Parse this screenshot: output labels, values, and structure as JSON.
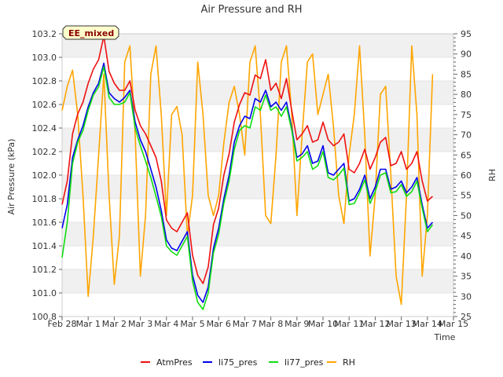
{
  "chart_data": {
    "type": "line",
    "title": "Air Pressure and RH",
    "xlabel": "Time",
    "ylabel": "Air Pressure (kPa)",
    "y2label": "RH",
    "badge": "EE_mixed",
    "x_ticks": [
      "Feb 28",
      "Mar 1",
      "Mar 2",
      "Mar 3",
      "Mar 4",
      "Mar 5",
      "Mar 6",
      "Mar 7",
      "Mar 8",
      "Mar 9",
      "Mar 10",
      "Mar 11",
      "Mar 12",
      "Mar 13",
      "Mar 14",
      "Mar 15"
    ],
    "xlim": [
      0,
      15
    ],
    "ylim": [
      100.8,
      103.2
    ],
    "y_ticks": [
      "100.8",
      "101.0",
      "101.2",
      "101.4",
      "101.6",
      "101.8",
      "102.0",
      "102.2",
      "102.4",
      "102.6",
      "102.8",
      "103.0",
      "103.2"
    ],
    "y2lim": [
      25,
      95
    ],
    "y2_ticks": [
      "25",
      "30",
      "35",
      "40",
      "45",
      "50",
      "55",
      "60",
      "65",
      "70",
      "75",
      "80",
      "85",
      "90",
      "95"
    ],
    "grid": "horizontal bands",
    "legend_position": "bottom",
    "series": [
      {
        "name": "AtmPres",
        "axis": "left",
        "color": "#ee1111",
        "x": [
          0.0,
          0.2,
          0.4,
          0.6,
          0.8,
          1.0,
          1.2,
          1.4,
          1.6,
          1.8,
          2.0,
          2.2,
          2.4,
          2.6,
          2.8,
          3.0,
          3.2,
          3.4,
          3.6,
          3.8,
          4.0,
          4.2,
          4.4,
          4.6,
          4.8,
          5.0,
          5.2,
          5.4,
          5.6,
          5.8,
          6.0,
          6.2,
          6.4,
          6.6,
          6.8,
          7.0,
          7.2,
          7.4,
          7.6,
          7.8,
          8.0,
          8.2,
          8.4,
          8.6,
          8.8,
          9.0,
          9.2,
          9.4,
          9.6,
          9.8,
          10.0,
          10.2,
          10.4,
          10.6,
          10.8,
          11.0,
          11.2,
          11.4,
          11.6,
          11.8,
          12.0,
          12.2,
          12.4,
          12.6,
          12.8,
          13.0,
          13.2,
          13.4,
          13.6,
          13.8,
          14.0,
          14.2
        ],
        "values": [
          101.75,
          101.95,
          102.35,
          102.52,
          102.62,
          102.78,
          102.9,
          102.98,
          103.18,
          102.88,
          102.78,
          102.72,
          102.72,
          102.8,
          102.55,
          102.42,
          102.35,
          102.25,
          102.15,
          101.95,
          101.62,
          101.55,
          101.52,
          101.6,
          101.68,
          101.32,
          101.15,
          101.08,
          101.22,
          101.58,
          101.72,
          102.0,
          102.18,
          102.45,
          102.6,
          102.7,
          102.68,
          102.85,
          102.82,
          102.98,
          102.72,
          102.78,
          102.65,
          102.82,
          102.55,
          102.3,
          102.35,
          102.42,
          102.28,
          102.3,
          102.45,
          102.3,
          102.25,
          102.28,
          102.35,
          102.05,
          102.02,
          102.1,
          102.22,
          102.05,
          102.15,
          102.28,
          102.32,
          102.08,
          102.1,
          102.2,
          102.05,
          102.1,
          102.2,
          101.95,
          101.78,
          101.82
        ]
      },
      {
        "name": "li75_pres",
        "axis": "left",
        "color": "#0000ee",
        "x": [
          0.0,
          0.2,
          0.4,
          0.6,
          0.8,
          1.0,
          1.2,
          1.4,
          1.6,
          1.8,
          2.0,
          2.2,
          2.4,
          2.6,
          2.8,
          3.0,
          3.2,
          3.4,
          3.6,
          3.8,
          4.0,
          4.2,
          4.4,
          4.6,
          4.8,
          5.0,
          5.2,
          5.4,
          5.6,
          5.8,
          6.0,
          6.2,
          6.4,
          6.6,
          6.8,
          7.0,
          7.2,
          7.4,
          7.6,
          7.8,
          8.0,
          8.2,
          8.4,
          8.6,
          8.8,
          9.0,
          9.2,
          9.4,
          9.6,
          9.8,
          10.0,
          10.2,
          10.4,
          10.6,
          10.8,
          11.0,
          11.2,
          11.4,
          11.6,
          11.8,
          12.0,
          12.2,
          12.4,
          12.6,
          12.8,
          13.0,
          13.2,
          13.4,
          13.6,
          13.8,
          14.0,
          14.2
        ],
        "values": [
          101.55,
          101.75,
          102.15,
          102.3,
          102.42,
          102.58,
          102.7,
          102.78,
          102.95,
          102.7,
          102.65,
          102.62,
          102.66,
          102.72,
          102.45,
          102.3,
          102.2,
          102.05,
          101.9,
          101.7,
          101.45,
          101.38,
          101.36,
          101.44,
          101.52,
          101.15,
          100.98,
          100.92,
          101.05,
          101.38,
          101.55,
          101.8,
          102.0,
          102.28,
          102.42,
          102.5,
          102.48,
          102.65,
          102.62,
          102.72,
          102.58,
          102.62,
          102.55,
          102.62,
          102.4,
          102.15,
          102.18,
          102.25,
          102.1,
          102.12,
          102.25,
          102.02,
          102.0,
          102.05,
          102.1,
          101.78,
          101.8,
          101.88,
          102.0,
          101.8,
          101.9,
          102.05,
          102.05,
          101.88,
          101.9,
          101.95,
          101.85,
          101.9,
          101.98,
          101.75,
          101.55,
          101.6
        ]
      },
      {
        "name": "li77_pres",
        "axis": "left",
        "color": "#11dd11",
        "x": [
          0.0,
          0.2,
          0.4,
          0.6,
          0.8,
          1.0,
          1.2,
          1.4,
          1.6,
          1.8,
          2.0,
          2.2,
          2.4,
          2.6,
          2.8,
          3.0,
          3.2,
          3.4,
          3.6,
          3.8,
          4.0,
          4.2,
          4.4,
          4.6,
          4.8,
          5.0,
          5.2,
          5.4,
          5.6,
          5.8,
          6.0,
          6.2,
          6.4,
          6.6,
          6.8,
          7.0,
          7.2,
          7.4,
          7.6,
          7.8,
          8.0,
          8.2,
          8.4,
          8.6,
          8.8,
          9.0,
          9.2,
          9.4,
          9.6,
          9.8,
          10.0,
          10.2,
          10.4,
          10.6,
          10.8,
          11.0,
          11.2,
          11.4,
          11.6,
          11.8,
          12.0,
          12.2,
          12.4,
          12.6,
          12.8,
          13.0,
          13.2,
          13.4,
          13.6,
          13.8,
          14.0,
          14.2
        ],
        "values": [
          101.3,
          101.6,
          102.1,
          102.28,
          102.38,
          102.55,
          102.68,
          102.75,
          102.92,
          102.66,
          102.6,
          102.6,
          102.62,
          102.7,
          102.4,
          102.25,
          102.12,
          101.98,
          101.82,
          101.65,
          101.4,
          101.35,
          101.32,
          101.4,
          101.48,
          101.1,
          100.92,
          100.86,
          101.0,
          101.34,
          101.5,
          101.76,
          101.95,
          102.22,
          102.38,
          102.42,
          102.4,
          102.58,
          102.55,
          102.68,
          102.55,
          102.58,
          102.5,
          102.58,
          102.38,
          102.12,
          102.15,
          102.2,
          102.05,
          102.08,
          102.2,
          101.98,
          101.96,
          102.0,
          102.06,
          101.75,
          101.76,
          101.85,
          101.96,
          101.76,
          101.86,
          102.0,
          102.02,
          101.85,
          101.86,
          101.92,
          101.82,
          101.86,
          101.95,
          101.72,
          101.52,
          101.58
        ]
      },
      {
        "name": "RH",
        "axis": "right",
        "color": "#ffa500",
        "x": [
          0.0,
          0.2,
          0.4,
          0.6,
          0.8,
          1.0,
          1.2,
          1.4,
          1.6,
          1.8,
          2.0,
          2.2,
          2.4,
          2.6,
          2.8,
          3.0,
          3.2,
          3.4,
          3.6,
          3.8,
          4.0,
          4.2,
          4.4,
          4.6,
          4.8,
          5.0,
          5.2,
          5.4,
          5.6,
          5.8,
          6.0,
          6.2,
          6.4,
          6.6,
          6.8,
          7.0,
          7.2,
          7.4,
          7.6,
          7.8,
          8.0,
          8.2,
          8.4,
          8.6,
          8.8,
          9.0,
          9.2,
          9.4,
          9.6,
          9.8,
          10.0,
          10.2,
          10.4,
          10.6,
          10.8,
          11.0,
          11.2,
          11.4,
          11.6,
          11.8,
          12.0,
          12.2,
          12.4,
          12.6,
          12.8,
          13.0,
          13.2,
          13.4,
          13.6,
          13.8,
          14.0,
          14.2
        ],
        "values": [
          76,
          82,
          86,
          75,
          55,
          30,
          45,
          65,
          85,
          55,
          33,
          45,
          88,
          92,
          70,
          35,
          50,
          85,
          92,
          75,
          50,
          75,
          77,
          70,
          45,
          55,
          88,
          75,
          55,
          50,
          55,
          68,
          78,
          82,
          75,
          65,
          88,
          92,
          75,
          50,
          48,
          65,
          88,
          92,
          75,
          50,
          70,
          88,
          90,
          75,
          80,
          85,
          72,
          55,
          48,
          65,
          75,
          92,
          70,
          40,
          55,
          80,
          82,
          60,
          35,
          28,
          55,
          92,
          75,
          35,
          50,
          85
        ]
      }
    ]
  }
}
